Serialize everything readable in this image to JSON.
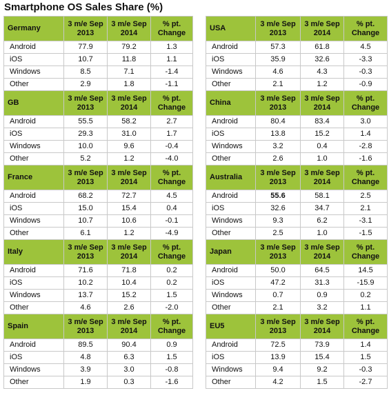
{
  "title": "Smartphone OS Sales Share (%)",
  "tables": [
    {
      "region": "Germany",
      "headers": [
        "3 m/e Sep\n2013",
        "3 m/e Sep\n2014",
        "% pt.\nChange"
      ],
      "rows": [
        [
          "Android",
          "77.9",
          "79.2",
          "1.3"
        ],
        [
          "iOS",
          "10.7",
          "11.8",
          "1.1"
        ],
        [
          "Windows",
          "8.5",
          "7.1",
          "-1.4"
        ],
        [
          "Other",
          "2.9",
          "1.8",
          "-1.1"
        ]
      ]
    },
    {
      "region": "GB",
      "headers": [
        "3 m/e Sep\n2013",
        "3 m/e Sep\n2014",
        "% pt.\nChange"
      ],
      "rows": [
        [
          "Android",
          "55.5",
          "58.2",
          "2.7"
        ],
        [
          "iOS",
          "29.3",
          "31.0",
          "1.7"
        ],
        [
          "Windows",
          "10.0",
          "9.6",
          "-0.4"
        ],
        [
          "Other",
          "5.2",
          "1.2",
          "-4.0"
        ]
      ]
    },
    {
      "region": "France",
      "headers": [
        "3 m/e Sep\n2013",
        "3 m/e Sep\n2014",
        "% pt.\nChange"
      ],
      "rows": [
        [
          "Android",
          "68.2",
          "72.7",
          "4.5"
        ],
        [
          "iOS",
          "15.0",
          "15.4",
          "0.4"
        ],
        [
          "Windows",
          "10.7",
          "10.6",
          "-0.1"
        ],
        [
          "Other",
          "6.1",
          "1.2",
          "-4.9"
        ]
      ]
    },
    {
      "region": "Italy",
      "headers": [
        "3 m/e Sep\n2013",
        "3 m/e Sep\n2014",
        "% pt.\nChange"
      ],
      "rows": [
        [
          "Android",
          "71.6",
          "71.8",
          "0.2"
        ],
        [
          "iOS",
          "10.2",
          "10.4",
          "0.2"
        ],
        [
          "Windows",
          "13.7",
          "15.2",
          "1.5"
        ],
        [
          "Other",
          "4.6",
          "2.6",
          "-2.0"
        ]
      ]
    },
    {
      "region": "Spain",
      "headers": [
        "3 m/e Sep\n2013",
        "3 m/e Sep\n2014",
        "% pt.\nChange"
      ],
      "rows": [
        [
          "Android",
          "89.5",
          "90.4",
          "0.9"
        ],
        [
          "iOS",
          "4.8",
          "6.3",
          "1.5"
        ],
        [
          "Windows",
          "3.9",
          "3.0",
          "-0.8"
        ],
        [
          "Other",
          "1.9",
          "0.3",
          "-1.6"
        ]
      ]
    },
    {
      "region": "USA",
      "headers": [
        "3 m/e Sep\n2013",
        "3 m/e Sep\n2014",
        "% pt.\nChange"
      ],
      "rows": [
        [
          "Android",
          "57.3",
          "61.8",
          "4.5"
        ],
        [
          "iOS",
          "35.9",
          "32.6",
          "-3.3"
        ],
        [
          "Windows",
          "4.6",
          "4.3",
          "-0.3"
        ],
        [
          "Other",
          "2.1",
          "1.2",
          "-0.9"
        ]
      ]
    },
    {
      "region": "China",
      "headers": [
        "3 m/e Sep\n2013",
        "3 m/e Sep\n2014",
        "% pt.\nChange"
      ],
      "rows": [
        [
          "Android",
          "80.4",
          "83.4",
          "3.0"
        ],
        [
          "iOS",
          "13.8",
          "15.2",
          "1.4"
        ],
        [
          "Windows",
          "3.2",
          "0.4",
          "-2.8"
        ],
        [
          "Other",
          "2.6",
          "1.0",
          "-1.6"
        ]
      ]
    },
    {
      "region": "Australia",
      "headers": [
        "3 m/e Sep\n2013",
        "3 m/e Sep\n2014",
        "% pt.\nChange"
      ],
      "rows": [
        [
          "Android",
          "55.6",
          "58.1",
          "2.5"
        ],
        [
          "iOS",
          "32.6",
          "34.7",
          "2.1"
        ],
        [
          "Windows",
          "9.3",
          "6.2",
          "-3.1"
        ],
        [
          "Other",
          "2.5",
          "1.0",
          "-1.5"
        ]
      ]
    },
    {
      "region": "Japan",
      "headers": [
        "3 m/e Sep\n2013",
        "3 m/e Sep\n2014",
        "% pt.\nChange"
      ],
      "rows": [
        [
          "Android",
          "50.0",
          "64.5",
          "14.5"
        ],
        [
          "iOS",
          "47.2",
          "31.3",
          "-15.9"
        ],
        [
          "Windows",
          "0.7",
          "0.9",
          "0.2"
        ],
        [
          "Other",
          "2.1",
          "3.2",
          "1.1"
        ]
      ]
    },
    {
      "region": "EU5",
      "headers": [
        "3 m/e Sep\n2013",
        "3 m/e Sep\n2014",
        "% pt.\nChange"
      ],
      "rows": [
        [
          "Android",
          "72.5",
          "73.9",
          "1.4"
        ],
        [
          "iOS",
          "13.9",
          "15.4",
          "1.5"
        ],
        [
          "Windows",
          "9.4",
          "9.2",
          "-0.3"
        ],
        [
          "Other",
          "4.2",
          "1.5",
          "-2.7"
        ]
      ]
    }
  ]
}
